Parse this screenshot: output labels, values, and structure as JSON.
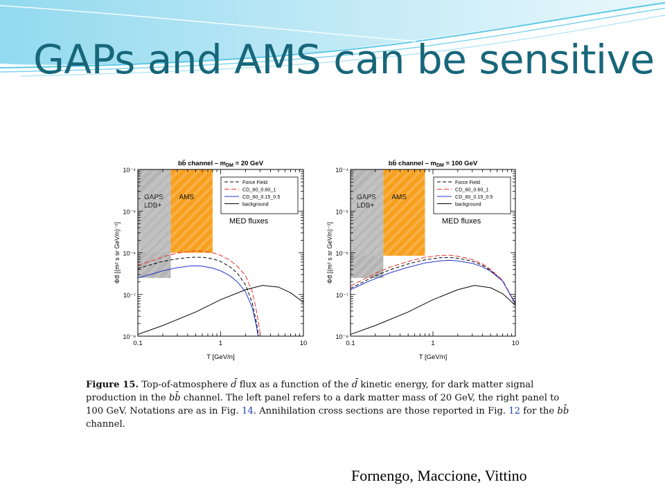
{
  "slide": {
    "title": "GAPs and AMS can be sensitive",
    "citation": "Fornengo, Maccione, Vittino",
    "colors": {
      "title": "#17667a",
      "wave": "#5ec8e6"
    }
  },
  "figure": {
    "caption_label": "Figure 15.",
    "caption_parts": [
      "Top-of-atmosphere ",
      " flux as a function of the ",
      " kinetic energy, for dark matter signal production in the ",
      " channel. The left panel refers to a dark matter mass of 20 GeV, the right panel to 100 GeV. Notations are as in Fig. ",
      ". Annihilation cross sections are those reported in Fig. ",
      " for the ",
      " channel."
    ],
    "caption_symbols": {
      "dbar": "d̄",
      "bbbar": "bb̄"
    },
    "caption_refs": [
      "14",
      "12"
    ]
  },
  "chart_data": [
    {
      "type": "line",
      "title": "bb̄ channel – m",
      "title_sub": "DM",
      "title_tail": " = 20 GeV",
      "xlabel": "T [GeV/n]",
      "ylabel": "Φd̄ [(m² s sr GeV/n)⁻¹]",
      "xscale": "log",
      "yscale": "log",
      "xlim": [
        0.1,
        10
      ],
      "ylim": [
        1e-08,
        0.0001
      ],
      "xticks": [
        "0.1",
        "1",
        "10"
      ],
      "yticks": [
        "10⁻⁸",
        "10⁻⁷",
        "10⁻⁶",
        "10⁻⁵",
        "10⁻⁴"
      ],
      "annotation": "MED fluxes",
      "regions": [
        {
          "name": "GAPS LDB+",
          "label_lines": [
            "GAPS",
            "LDB+"
          ],
          "x": [
            0.1,
            0.25
          ],
          "y": [
            2.5e-07,
            0.0001
          ],
          "color": "#b4b4b4"
        },
        {
          "name": "AMS",
          "label_lines": [
            "AMS"
          ],
          "x": [
            0.25,
            0.8
          ],
          "y": [
            1e-06,
            0.0001
          ],
          "color": "#f7a01e"
        }
      ],
      "series": [
        {
          "name": "Force Field",
          "color": "#000000",
          "dash": "5,3",
          "x": [
            0.1,
            0.15,
            0.2,
            0.3,
            0.45,
            0.6,
            0.8,
            1,
            1.3,
            1.6,
            2,
            2.4,
            2.7,
            3
          ],
          "y": [
            4.2e-07,
            5.3e-07,
            6.2e-07,
            7.2e-07,
            7.8e-07,
            7.8e-07,
            7.2e-07,
            6.2e-07,
            4.6e-07,
            3.2e-07,
            1.7e-07,
            6.5e-08,
            2.2e-08,
            6e-09
          ]
        },
        {
          "name": "CD_60_0.60_1",
          "color": "#e8302a",
          "dash": "7,3",
          "x": [
            0.1,
            0.15,
            0.2,
            0.3,
            0.45,
            0.6,
            0.8,
            1,
            1.3,
            1.6,
            2,
            2.4,
            2.7,
            3.1
          ],
          "y": [
            5e-07,
            6.5e-07,
            8e-07,
            9.8e-07,
            1.1e-06,
            1.1e-06,
            1e-06,
            8.7e-07,
            6.6e-07,
            4.7e-07,
            2.8e-07,
            1.2e-07,
            4.2e-08,
            8e-09
          ]
        },
        {
          "name": "CD_60_0.15_0.5",
          "color": "#2233cc",
          "dash": "",
          "x": [
            0.1,
            0.15,
            0.2,
            0.3,
            0.45,
            0.6,
            0.8,
            1,
            1.3,
            1.6,
            2,
            2.4,
            2.7,
            3
          ],
          "y": [
            2.5e-07,
            3.1e-07,
            3.7e-07,
            4.4e-07,
            4.9e-07,
            4.8e-07,
            4.3e-07,
            3.7e-07,
            2.8e-07,
            2e-07,
            1.15e-07,
            5e-08,
            1.8e-08,
            5e-09
          ]
        },
        {
          "name": "background",
          "color": "#000000",
          "dash": "",
          "x": [
            0.1,
            0.2,
            0.5,
            1,
            2,
            3.2,
            5,
            7,
            10
          ],
          "y": [
            1.1e-08,
            1.8e-08,
            3.8e-08,
            7.5e-08,
            1.3e-07,
            1.65e-07,
            1.5e-07,
            1.1e-07,
            6.5e-08
          ]
        }
      ]
    },
    {
      "type": "line",
      "title": "bb̄ channel – m",
      "title_sub": "DM",
      "title_tail": " = 100 GeV",
      "xlabel": "T [GeV/n]",
      "ylabel": "Φd̄ [(m² s sr GeV/n)⁻¹]",
      "xscale": "log",
      "yscale": "log",
      "xlim": [
        0.1,
        10
      ],
      "ylim": [
        1e-08,
        0.0001
      ],
      "xticks": [
        "0.1",
        "1",
        "10"
      ],
      "yticks": [
        "10⁻⁸",
        "10⁻⁷",
        "10⁻⁶",
        "10⁻⁵",
        "10⁻⁴"
      ],
      "annotation": "MED fluxes",
      "regions": [
        {
          "name": "GAPS LDB+",
          "label_lines": [
            "GAPS",
            "LDB+"
          ],
          "x": [
            0.1,
            0.25
          ],
          "y": [
            2.5e-07,
            0.0001
          ],
          "color": "#b4b4b4"
        },
        {
          "name": "AMS",
          "label_lines": [
            "AMS"
          ],
          "x": [
            0.25,
            0.8
          ],
          "y": [
            8.5e-07,
            0.0001
          ],
          "color": "#f7a01e"
        }
      ],
      "series": [
        {
          "name": "Force Field",
          "color": "#000000",
          "dash": "5,3",
          "x": [
            0.1,
            0.15,
            0.2,
            0.3,
            0.5,
            0.8,
            1.2,
            1.6,
            2,
            3,
            4,
            5,
            7,
            10
          ],
          "y": [
            1.4e-07,
            2.1e-07,
            2.8e-07,
            3.9e-07,
            5.4e-07,
            6.8e-07,
            7.6e-07,
            7.7e-07,
            7.4e-07,
            6.3e-07,
            5e-07,
            3.8e-07,
            2.1e-07,
            6e-08
          ]
        },
        {
          "name": "CD_60_0.60_1",
          "color": "#e8302a",
          "dash": "7,3",
          "x": [
            0.1,
            0.15,
            0.2,
            0.3,
            0.5,
            0.8,
            1.2,
            1.6,
            2,
            3,
            4,
            5,
            7,
            10
          ],
          "y": [
            1.6e-07,
            2.4e-07,
            3.2e-07,
            4.5e-07,
            6.2e-07,
            7.8e-07,
            8.6e-07,
            8.7e-07,
            8.3e-07,
            6.9e-07,
            5.4e-07,
            4e-07,
            2.2e-07,
            6e-08
          ]
        },
        {
          "name": "CD_60_0.15_0.5",
          "color": "#2233cc",
          "dash": "",
          "x": [
            0.1,
            0.15,
            0.2,
            0.3,
            0.5,
            0.8,
            1.2,
            1.6,
            2,
            3,
            4,
            5,
            7,
            10
          ],
          "y": [
            1.3e-07,
            1.9e-07,
            2.4e-07,
            3.3e-07,
            4.5e-07,
            5.7e-07,
            6.4e-07,
            6.6e-07,
            6.4e-07,
            5.6e-07,
            4.6e-07,
            3.6e-07,
            2.1e-07,
            5.8e-08
          ]
        },
        {
          "name": "background",
          "color": "#000000",
          "dash": "",
          "x": [
            0.1,
            0.2,
            0.5,
            1,
            2,
            3.2,
            5,
            7,
            10
          ],
          "y": [
            1.1e-08,
            1.8e-08,
            3.8e-08,
            7.5e-08,
            1.3e-07,
            1.65e-07,
            1.45e-07,
            1.05e-07,
            5.5e-08
          ]
        }
      ]
    }
  ]
}
